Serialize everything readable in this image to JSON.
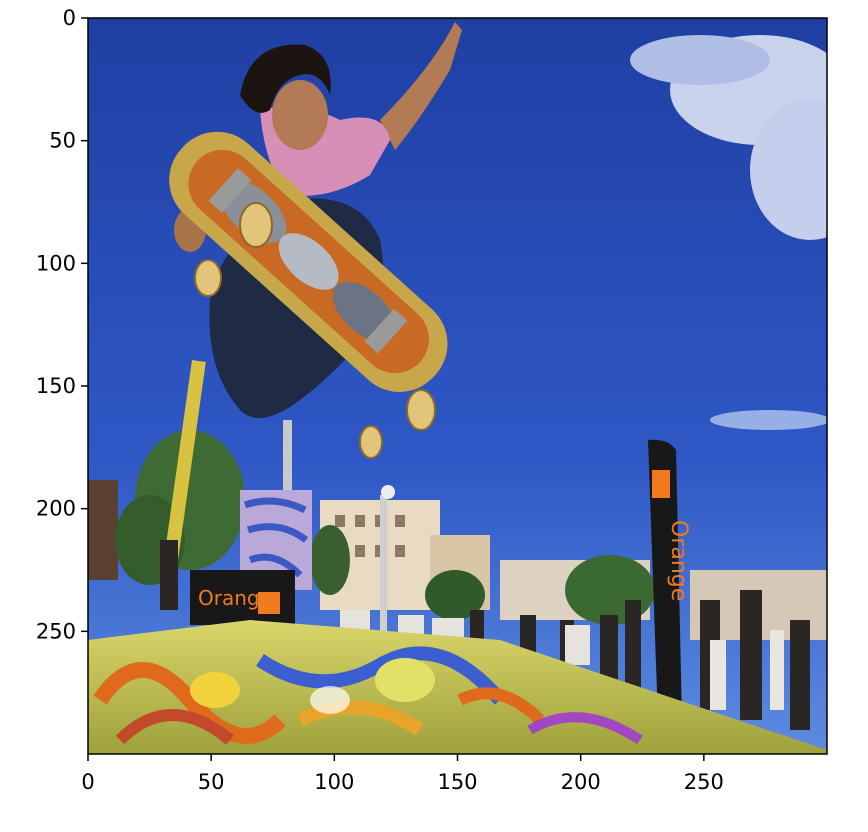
{
  "image": {
    "description_free": true,
    "colors": {
      "sky_top": "#1f3fa3",
      "sky_bottom": "#4a7ad8",
      "cloud": "#e6ecf8",
      "skin": "#b27a55",
      "hair": "#1b1410",
      "shirt": "#d78fb8",
      "jeans": "#1f2b44",
      "deck": "#c8a64a",
      "deck_art": "#c86a23",
      "wheel": "#e2c47a",
      "ramp": "#d8d060",
      "graffiti_orange": "#e06a1c",
      "graffiti_blue": "#3c5fcf",
      "tree": "#3e6a33",
      "building": "#e8dbc2",
      "banner_black": "#181818",
      "banner_orange": "#f07a1c"
    }
  },
  "axes": {
    "x_ticks": [
      "0",
      "50",
      "100",
      "150",
      "200",
      "250"
    ],
    "y_ticks": [
      "0",
      "50",
      "100",
      "150",
      "200",
      "250"
    ],
    "x_range": [
      0,
      300
    ],
    "y_range": [
      0,
      300
    ]
  },
  "banner": {
    "brand_text": "Orange"
  }
}
